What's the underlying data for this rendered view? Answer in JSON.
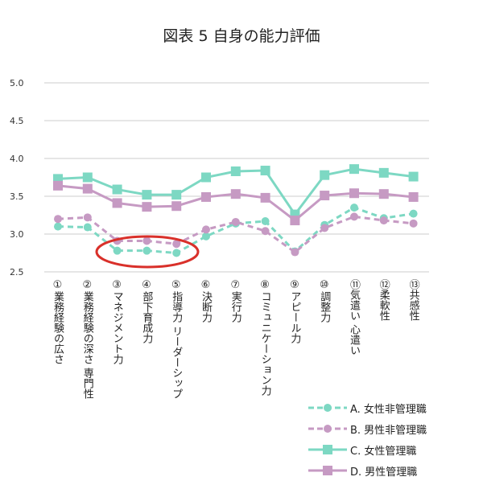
{
  "chart_data": {
    "type": "line",
    "title": "図表 5  自身の能力評価",
    "categories": [
      "①業務経験の広さ",
      "②業務経験の深さ 専門性",
      "③マネジメント力",
      "④部下育成力",
      "⑤指導力 リーダーシップ",
      "⑥決断力",
      "⑦実行力",
      "⑧コミュニケーション力",
      "⑨アピール力",
      "⑩調整力",
      "⑪気遣い 心遣い",
      "⑫柔軟性",
      "⑬共感性"
    ],
    "ylim": [
      2.5,
      5.0
    ],
    "yticks": [
      "2.5",
      "3.0",
      "3.5",
      "4.0",
      "4.5",
      "5.0"
    ],
    "grid": true,
    "legend_position": "bottom-right",
    "series": [
      {
        "name": "A. 女性非管理職",
        "color": "#7dd8c3",
        "style": "dashed",
        "marker": "circle",
        "values": [
          3.1,
          3.09,
          2.78,
          2.78,
          2.75,
          2.97,
          3.14,
          3.17,
          2.77,
          3.12,
          3.35,
          3.21,
          3.27
        ]
      },
      {
        "name": "B. 男性非管理職",
        "color": "#c69ac3",
        "style": "dashed",
        "marker": "circle",
        "values": [
          3.2,
          3.22,
          2.91,
          2.91,
          2.87,
          3.06,
          3.16,
          3.04,
          2.76,
          3.08,
          3.23,
          3.18,
          3.14
        ]
      },
      {
        "name": "C. 女性管理職",
        "color": "#7dd8c3",
        "style": "solid",
        "marker": "square",
        "values": [
          3.73,
          3.75,
          3.59,
          3.52,
          3.52,
          3.75,
          3.83,
          3.84,
          3.26,
          3.78,
          3.86,
          3.81,
          3.76
        ]
      },
      {
        "name": "D. 男性管理職",
        "color": "#c69ac3",
        "style": "solid",
        "marker": "square",
        "values": [
          3.64,
          3.6,
          3.41,
          3.36,
          3.37,
          3.49,
          3.53,
          3.48,
          3.18,
          3.51,
          3.54,
          3.53,
          3.49
        ]
      }
    ],
    "annotation": {
      "shape": "ellipse",
      "color": "#d9302a",
      "highlights": [
        "③マネジメント力",
        "④部下育成力",
        "⑤指導力 リーダーシップ"
      ]
    }
  }
}
